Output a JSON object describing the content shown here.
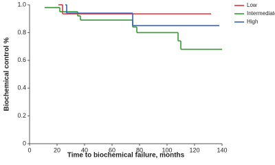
{
  "chart_data": {
    "type": "step",
    "x_label": "Time to biochemical failure, months",
    "y_label": "Biochemical control %",
    "xlim": [
      0,
      140
    ],
    "xticks": [
      0,
      20,
      40,
      60,
      80,
      100,
      120,
      140
    ],
    "ylim": [
      0,
      1
    ],
    "yticks": [
      0,
      0.2,
      0.4,
      0.6,
      0.8,
      {
        "value": 1,
        "label": "1.0"
      }
    ],
    "legend": "top-right",
    "series": [
      {
        "name": "Low",
        "color": "#e0323c",
        "x": [
          21,
          24,
          132
        ],
        "values": [
          1,
          0.935,
          0.935
        ]
      },
      {
        "name": "Intermediate",
        "color": "#2ca02c",
        "x": [
          11,
          22,
          35,
          37,
          75,
          78,
          108,
          110,
          140
        ],
        "values": [
          0.98,
          0.95,
          0.92,
          0.89,
          0.84,
          0.8,
          0.74,
          0.68,
          0.68
        ]
      },
      {
        "name": "High",
        "color": "#2f5fc8",
        "x": [
          26,
          27,
          75,
          138
        ],
        "values": [
          1,
          0.94,
          0.85,
          0.85
        ]
      }
    ]
  }
}
